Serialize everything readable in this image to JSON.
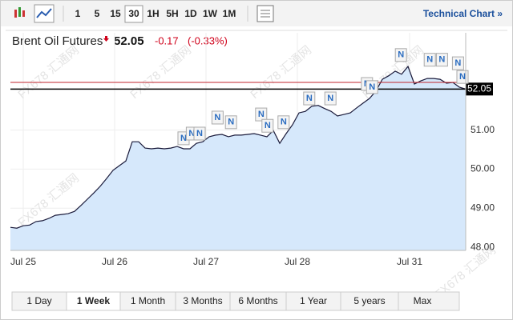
{
  "toolbar": {
    "intervals": [
      "1",
      "5",
      "15",
      "30",
      "1H",
      "5H",
      "1D",
      "1W",
      "1M"
    ],
    "selected": 3,
    "link": "Technical Chart »"
  },
  "header": {
    "name": "Brent Oil Futures",
    "price": "52.05",
    "change": "-0.17",
    "change_pct": "(-0.33%)"
  },
  "chart_data": {
    "type": "line",
    "color": "#1a1a3a",
    "fill": "#d6e8fb",
    "grid": true,
    "values": [
      48.51,
      48.49,
      48.55,
      48.57,
      48.66,
      48.68,
      48.74,
      48.82,
      48.84,
      48.86,
      48.92,
      49.07,
      49.23,
      49.39,
      49.56,
      49.76,
      49.97,
      50.09,
      50.21,
      50.7,
      50.7,
      50.54,
      50.52,
      50.54,
      50.52,
      50.54,
      50.58,
      50.52,
      50.52,
      50.66,
      50.7,
      50.83,
      50.87,
      50.89,
      50.83,
      50.87,
      50.87,
      50.89,
      50.91,
      50.87,
      50.83,
      50.99,
      50.66,
      50.91,
      51.14,
      51.44,
      51.48,
      51.61,
      51.63,
      51.55,
      51.48,
      51.36,
      51.4,
      51.44,
      51.57,
      51.69,
      51.81,
      52.0,
      52.3,
      52.39,
      52.51,
      52.43,
      52.63,
      52.18,
      52.26,
      52.32,
      52.32,
      52.3,
      52.2,
      52.22,
      52.1,
      52.05
    ],
    "xlim": [
      0,
      71
    ],
    "ylim": [
      47.92,
      53.49
    ],
    "yticks": [
      {
        "value": 48,
        "label": "48.00"
      },
      {
        "value": 49,
        "label": "49.00"
      },
      {
        "value": 50,
        "label": "50.00"
      },
      {
        "value": 51,
        "label": "51.00"
      }
    ],
    "xticks": [
      {
        "value": 2,
        "label": "Jul 25"
      },
      {
        "value": 16.25,
        "label": "Jul 26"
      },
      {
        "value": 30.5,
        "label": "Jul 27"
      },
      {
        "value": 44.75,
        "label": "Jul 28"
      },
      {
        "value": 62.25,
        "label": "Jul 31"
      }
    ],
    "hlines": [
      {
        "value": 52.22,
        "color": "#c0262d"
      },
      {
        "value": 52.05,
        "color": "#000000"
      }
    ],
    "news": {
      "label": "N",
      "x": [
        27,
        28.3,
        29.5,
        32.3,
        34.4,
        39.1,
        40.1,
        42.6,
        46.6,
        49.9,
        55.6,
        56.4,
        60.9,
        65.4,
        67.3,
        69.8,
        70.5
      ],
      "values": [
        50.79,
        50.91,
        50.91,
        51.32,
        51.2,
        51.4,
        51.11,
        51.2,
        51.81,
        51.81,
        52.18,
        52.1,
        52.92,
        52.8,
        52.8,
        52.71,
        52.36
      ]
    },
    "watermark": "FX678 汇通网"
  },
  "ranges": {
    "buttons": [
      "1 Day",
      "1 Week",
      "1 Month",
      "3 Months",
      "6 Months",
      "1 Year",
      "5 years",
      "Max"
    ],
    "selected": 1
  }
}
